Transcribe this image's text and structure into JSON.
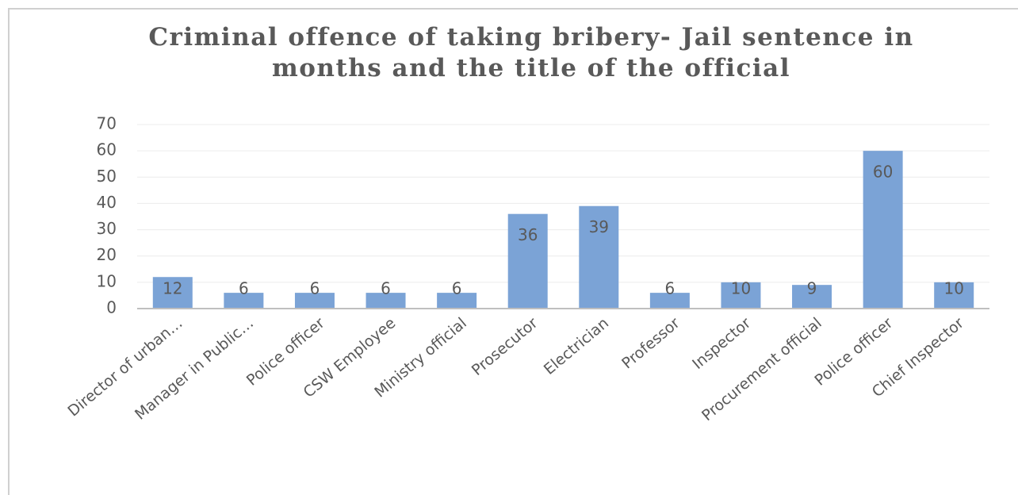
{
  "chart_data": {
    "type": "bar",
    "title": "Criminal offence of taking bribery- Jail sentence in months and the title of the official",
    "categories": [
      "Director of urban…",
      "Manager in Public…",
      "Police officer",
      "CSW Employee",
      "Ministry official",
      "Prosecutor",
      "Electrician",
      "Professor",
      "Inspector",
      "Procurement official",
      "Police officer",
      "Chief Inspector"
    ],
    "values": [
      12,
      6,
      6,
      6,
      6,
      36,
      39,
      6,
      10,
      9,
      60,
      10
    ],
    "color": "#7ba3d6",
    "ylim": [
      0,
      70
    ],
    "yticks": [
      0,
      10,
      20,
      30,
      40,
      50,
      60,
      70
    ],
    "grid": true
  }
}
